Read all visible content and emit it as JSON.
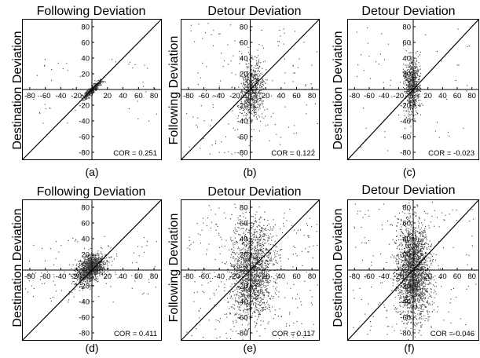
{
  "chart_data": [
    {
      "id": "a",
      "type": "scatter",
      "title": "Following Deviation",
      "ylabel": "Destination Deviation",
      "xlabel": "",
      "caption": "(a)",
      "cor_text": "COR = 0.251",
      "cor": 0.251,
      "xlim": [
        -90,
        90
      ],
      "ylim": [
        -90,
        90
      ],
      "xticks": [
        "-80",
        "-60",
        "-40",
        "-20",
        "20",
        "40",
        "60",
        "80"
      ],
      "yticks": [
        "80",
        "60",
        "40",
        "20",
        "-20",
        "-40",
        "-60",
        "-80"
      ],
      "diagonal": true,
      "grid": false,
      "cloud": {
        "cx": 0,
        "cy": 0,
        "sx": 6,
        "sy": 6,
        "tilt": 0.9,
        "n": 500,
        "tail": 0.08
      }
    },
    {
      "id": "b",
      "type": "scatter",
      "title": "Detour Deviation",
      "ylabel": "Following Deviation",
      "xlabel": "",
      "caption": "(b)",
      "cor_text": "COR = 0.122",
      "cor": 0.122,
      "xlim": [
        -90,
        90
      ],
      "ylim": [
        -90,
        90
      ],
      "xticks": [
        "-80",
        "-60",
        "-40",
        "-20",
        "20",
        "40",
        "60",
        "80"
      ],
      "yticks": [
        "80",
        "60",
        "40",
        "20",
        "-20",
        "-40",
        "-60",
        "-80"
      ],
      "diagonal": true,
      "grid": false,
      "cloud": {
        "cx": 2,
        "cy": 0,
        "sx": 7,
        "sy": 18,
        "tilt": 0.12,
        "n": 900,
        "tail": 0.18
      }
    },
    {
      "id": "c",
      "type": "scatter",
      "title": "Detour Deviation",
      "ylabel": "Destination Deviation",
      "xlabel": "",
      "caption": "(c)",
      "cor_text": "COR = -0.023",
      "cor": -0.023,
      "xlim": [
        -90,
        90
      ],
      "ylim": [
        -90,
        90
      ],
      "xticks": [
        "-80",
        "-60",
        "-40",
        "-20",
        "20",
        "40",
        "60",
        "80"
      ],
      "yticks": [
        "80",
        "60",
        "40",
        "20",
        "-20",
        "-40",
        "-60",
        "-80"
      ],
      "diagonal": true,
      "grid": false,
      "cloud": {
        "cx": -2,
        "cy": 5,
        "sx": 5,
        "sy": 18,
        "tilt": -0.02,
        "n": 800,
        "tail": 0.08
      }
    },
    {
      "id": "d",
      "type": "scatter",
      "title": "Following Deviation",
      "ylabel": "Destination Deviation",
      "xlabel": "",
      "caption": "(d)",
      "cor_text": "COR = 0.411",
      "cor": 0.411,
      "xlim": [
        -90,
        90
      ],
      "ylim": [
        -90,
        90
      ],
      "xticks": [
        "-80",
        "-60",
        "-40",
        "-20",
        "20",
        "40",
        "60",
        "80"
      ],
      "yticks": [
        "80",
        "60",
        "40",
        "20",
        "-20",
        "-40",
        "-60",
        "-80"
      ],
      "diagonal": true,
      "grid": false,
      "cloud": {
        "cx": -2,
        "cy": 2,
        "sx": 9,
        "sy": 9,
        "tilt": 0.41,
        "n": 1300,
        "tail": 0.08
      }
    },
    {
      "id": "e",
      "type": "scatter",
      "title": "Detour Deviation",
      "ylabel": "Following Deviation",
      "xlabel": "",
      "caption": "(e)",
      "cor_text": "COR = 0.117",
      "cor": 0.117,
      "xlim": [
        -90,
        90
      ],
      "ylim": [
        -90,
        90
      ],
      "xticks": [
        "-80",
        "-60",
        "-40",
        "-20",
        "20",
        "40",
        "60",
        "80"
      ],
      "yticks": [
        "80",
        "60",
        "40",
        "20",
        "-20",
        "-40",
        "-60",
        "-80"
      ],
      "diagonal": true,
      "grid": false,
      "cloud": {
        "cx": 2,
        "cy": -2,
        "sx": 14,
        "sy": 30,
        "tilt": 0.12,
        "n": 2000,
        "tail": 0.12
      }
    },
    {
      "id": "f",
      "type": "scatter",
      "title": "Detour Deviation",
      "ylabel": "Destination Deviation",
      "xlabel": "",
      "caption": "(f)",
      "cor_text": "COR =-0.046",
      "cor": -0.046,
      "xlim": [
        -90,
        90
      ],
      "ylim": [
        -90,
        90
      ],
      "xticks": [
        "-80",
        "-60",
        "-40",
        "-20",
        "20",
        "40",
        "60",
        "80"
      ],
      "yticks": [
        "80",
        "60",
        "40",
        "20",
        "-20",
        "-40",
        "-60",
        "-80"
      ],
      "diagonal": true,
      "grid": false,
      "cloud": {
        "cx": 0,
        "cy": 0,
        "sx": 11,
        "sy": 30,
        "tilt": -0.05,
        "n": 2400,
        "tail": 0.06
      }
    }
  ]
}
